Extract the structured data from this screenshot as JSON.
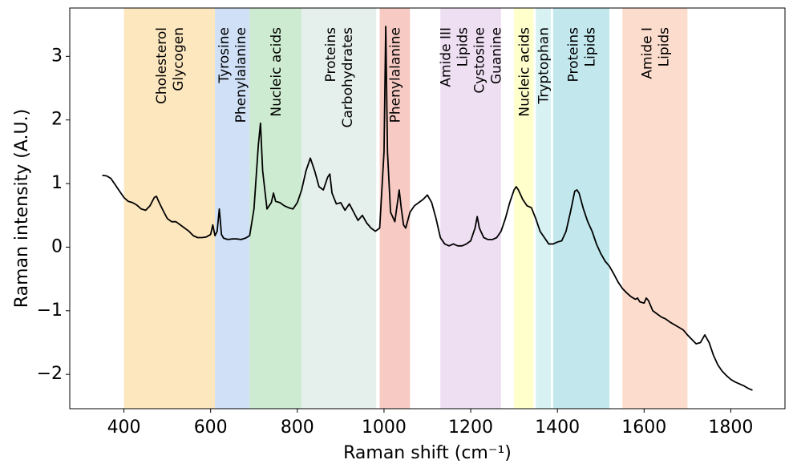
{
  "chart_data": {
    "type": "line",
    "xlabel": "Raman shift (cm⁻¹)",
    "ylabel": "Raman intensity (A.U.)",
    "xlim": [
      275,
      1925
    ],
    "ylim": [
      -2.54,
      3.76
    ],
    "xticks": [
      400,
      600,
      800,
      1000,
      1200,
      1400,
      1600,
      1800
    ],
    "yticks": [
      {
        "value": -2,
        "label": "−2"
      },
      {
        "value": -1,
        "label": "−1"
      },
      0,
      1,
      2,
      3
    ],
    "bands": [
      {
        "range": [
          400,
          610
        ],
        "color": "#fde7bf",
        "labels": [
          "Cholesterol",
          "Glycogen"
        ]
      },
      {
        "range": [
          610,
          690
        ],
        "color": "#cfe0f7",
        "labels": [
          "Tyrosine",
          "Phenylalanine"
        ]
      },
      {
        "range": [
          690,
          810
        ],
        "color": "#cdebd0",
        "labels": [
          "Nucleic acids"
        ]
      },
      {
        "range": [
          810,
          982
        ],
        "color": "#e5efec",
        "labels": [
          "Proteins",
          "Carbohydrates"
        ]
      },
      {
        "range": [
          990,
          1060
        ],
        "color": "#f7cbc3",
        "labels": [
          "Phenylalanine"
        ]
      },
      {
        "range": [
          1130,
          1270
        ],
        "color": "#efdff3",
        "labels": [
          "Amide III",
          "Lipids",
          "Cystosine",
          "Guanine"
        ]
      },
      {
        "range": [
          1300,
          1345
        ],
        "color": "#ffffcc",
        "labels": [
          "Nucleic acids"
        ]
      },
      {
        "range": [
          1350,
          1385
        ],
        "color": "#d8f2f3",
        "labels": [
          "Tryptophan"
        ]
      },
      {
        "range": [
          1390,
          1520
        ],
        "color": "#c2e8ee",
        "labels": [
          "Proteins",
          "Lipids"
        ]
      },
      {
        "range": [
          1550,
          1700
        ],
        "color": "#fcdccd",
        "labels": [
          "Amide I",
          "Lipids"
        ]
      }
    ],
    "series": [
      {
        "color": "#000000",
        "x": [
          350,
          360,
          370,
          380,
          390,
          400,
          410,
          420,
          430,
          440,
          450,
          460,
          470,
          475,
          480,
          490,
          500,
          510,
          520,
          530,
          540,
          550,
          560,
          570,
          580,
          590,
          600,
          605,
          610,
          615,
          620,
          625,
          630,
          640,
          650,
          660,
          670,
          680,
          690,
          700,
          710,
          715,
          720,
          730,
          740,
          745,
          750,
          760,
          770,
          780,
          790,
          800,
          810,
          820,
          830,
          840,
          850,
          860,
          870,
          875,
          880,
          890,
          900,
          910,
          920,
          930,
          940,
          950,
          960,
          970,
          980,
          990,
          1000,
          1004,
          1008,
          1015,
          1025,
          1035,
          1040,
          1045,
          1050,
          1060,
          1070,
          1080,
          1090,
          1100,
          1110,
          1120,
          1130,
          1140,
          1150,
          1160,
          1170,
          1180,
          1190,
          1200,
          1210,
          1215,
          1220,
          1230,
          1240,
          1250,
          1260,
          1270,
          1280,
          1290,
          1300,
          1305,
          1310,
          1320,
          1330,
          1340,
          1350,
          1360,
          1370,
          1380,
          1390,
          1400,
          1410,
          1420,
          1430,
          1440,
          1445,
          1450,
          1460,
          1470,
          1480,
          1490,
          1500,
          1510,
          1520,
          1530,
          1540,
          1550,
          1560,
          1570,
          1580,
          1585,
          1590,
          1600,
          1605,
          1610,
          1620,
          1630,
          1640,
          1650,
          1660,
          1670,
          1680,
          1690,
          1700,
          1710,
          1720,
          1730,
          1740,
          1750,
          1760,
          1770,
          1780,
          1790,
          1800,
          1810,
          1820,
          1830,
          1840,
          1850
        ],
        "values": [
          1.13,
          1.12,
          1.08,
          0.98,
          0.88,
          0.78,
          0.72,
          0.7,
          0.66,
          0.6,
          0.58,
          0.65,
          0.78,
          0.8,
          0.72,
          0.58,
          0.45,
          0.4,
          0.4,
          0.35,
          0.3,
          0.25,
          0.18,
          0.15,
          0.15,
          0.16,
          0.2,
          0.35,
          0.18,
          0.25,
          0.6,
          0.2,
          0.14,
          0.12,
          0.13,
          0.13,
          0.12,
          0.14,
          0.18,
          0.6,
          1.6,
          1.95,
          1.2,
          0.6,
          0.7,
          0.85,
          0.72,
          0.7,
          0.65,
          0.62,
          0.6,
          0.7,
          0.9,
          1.2,
          1.4,
          1.2,
          0.95,
          0.9,
          1.1,
          1.15,
          0.85,
          0.68,
          0.7,
          0.58,
          0.68,
          0.55,
          0.42,
          0.5,
          0.38,
          0.3,
          0.25,
          0.3,
          1.5,
          3.47,
          1.5,
          0.55,
          0.4,
          0.9,
          0.6,
          0.35,
          0.3,
          0.55,
          0.65,
          0.7,
          0.75,
          0.82,
          0.7,
          0.45,
          0.15,
          0.05,
          0.02,
          0.05,
          0.02,
          0.02,
          0.05,
          0.1,
          0.3,
          0.48,
          0.3,
          0.15,
          0.12,
          0.12,
          0.15,
          0.25,
          0.45,
          0.7,
          0.9,
          0.95,
          0.9,
          0.75,
          0.65,
          0.62,
          0.45,
          0.25,
          0.15,
          0.05,
          0.05,
          0.08,
          0.1,
          0.25,
          0.55,
          0.88,
          0.9,
          0.85,
          0.6,
          0.4,
          0.25,
          0.05,
          -0.1,
          -0.22,
          -0.3,
          -0.42,
          -0.55,
          -0.65,
          -0.72,
          -0.78,
          -0.82,
          -0.8,
          -0.86,
          -0.88,
          -0.8,
          -0.84,
          -1.0,
          -1.05,
          -1.1,
          -1.13,
          -1.18,
          -1.22,
          -1.26,
          -1.3,
          -1.38,
          -1.45,
          -1.52,
          -1.5,
          -1.38,
          -1.5,
          -1.7,
          -1.85,
          -1.95,
          -2.02,
          -2.08,
          -2.12,
          -2.15,
          -2.18,
          -2.22,
          -2.25
        ]
      }
    ]
  }
}
